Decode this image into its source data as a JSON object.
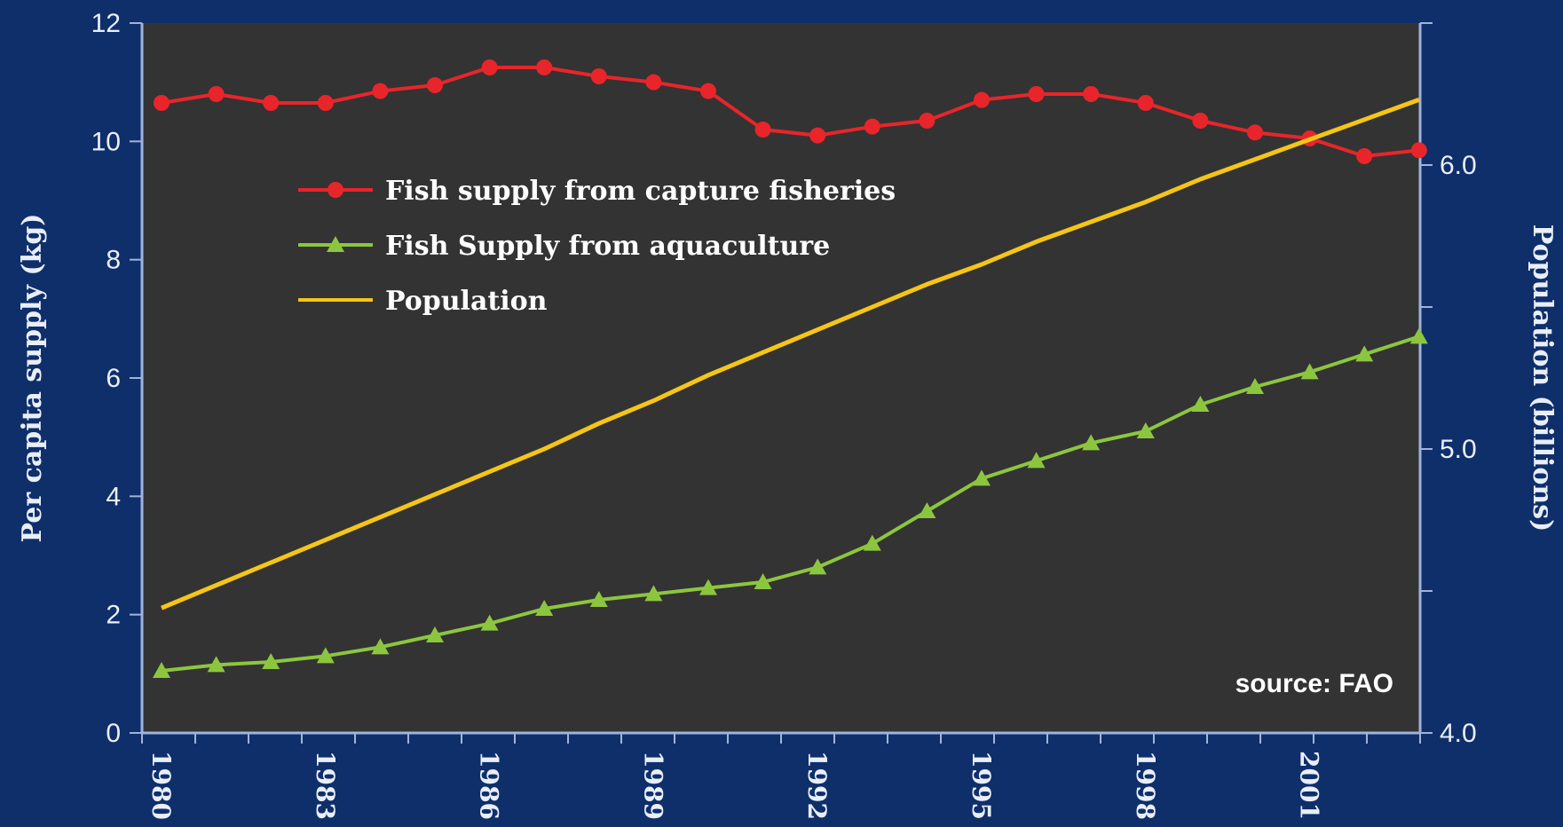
{
  "chart_data": {
    "type": "line",
    "ylabel": "Per capita supply (kg)",
    "y2label": "Population (billions)",
    "source": "source: FAO",
    "ylim": [
      0,
      12
    ],
    "y2lim": [
      4.0,
      6.5
    ],
    "yticks": [
      "0",
      "2",
      "4",
      "6",
      "8",
      "10",
      "12"
    ],
    "y2ticks": [
      "4.0",
      "5.0",
      "6.0"
    ],
    "xticks": [
      "1980",
      "1983",
      "1986",
      "1989",
      "1992",
      "1995",
      "1998",
      "2001"
    ],
    "grid": false,
    "legend_position": "upper-left inside plot",
    "background": "#333333",
    "x": [
      1980,
      1981,
      1982,
      1983,
      1984,
      1985,
      1986,
      1987,
      1988,
      1989,
      1990,
      1991,
      1992,
      1993,
      1994,
      1995,
      1996,
      1997,
      1998,
      1999,
      2000,
      2001,
      2002,
      2003
    ],
    "series": [
      {
        "name": "Fish supply from capture fisheries",
        "axis": "left",
        "color": "#e8252a",
        "marker": "circle",
        "values": [
          10.65,
          10.8,
          10.65,
          10.65,
          10.85,
          10.95,
          11.25,
          11.25,
          11.1,
          11.0,
          10.85,
          10.2,
          10.1,
          10.25,
          10.35,
          10.7,
          10.8,
          10.8,
          10.65,
          10.35,
          10.15,
          10.05,
          9.75,
          9.85
        ]
      },
      {
        "name": "Fish Supply from aquaculture",
        "axis": "left",
        "color": "#8cc63f",
        "marker": "triangle",
        "values": [
          1.05,
          1.15,
          1.2,
          1.3,
          1.45,
          1.65,
          1.85,
          2.1,
          2.25,
          2.35,
          2.45,
          2.55,
          2.8,
          3.2,
          3.75,
          4.3,
          4.6,
          4.9,
          5.1,
          5.55,
          5.85,
          6.1,
          6.4,
          6.7
        ]
      },
      {
        "name": "Population",
        "axis": "right",
        "color": "#f5c518",
        "marker": "none",
        "values": [
          4.44,
          4.52,
          4.6,
          4.68,
          4.76,
          4.84,
          4.92,
          5.0,
          5.09,
          5.17,
          5.26,
          5.34,
          5.42,
          5.5,
          5.58,
          5.65,
          5.73,
          5.8,
          5.87,
          5.95,
          6.02,
          6.09,
          6.16,
          6.23
        ]
      }
    ]
  }
}
